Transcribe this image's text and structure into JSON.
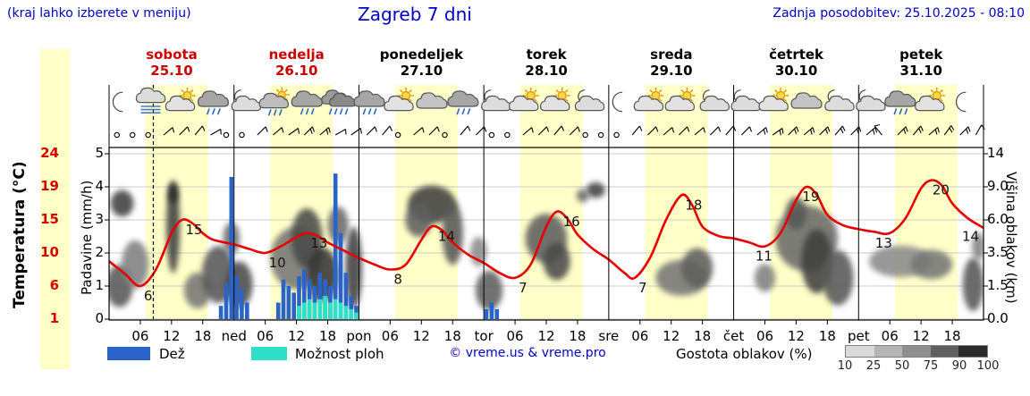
{
  "header": {
    "note_left": "(kraj lahko izberete v meniju)",
    "title": "Zagreb 7 dni",
    "last_update": "Zadnja posodobitev: 25.10.2025 - 08:10"
  },
  "colors": {
    "link_blue": "#0000cc",
    "weekend_red": "#cc0000",
    "temp_red": "#dd0000",
    "curve_red": "#e80000",
    "rain_blue": "#2a64c8",
    "shower_cyan": "#2fe0c8",
    "day_band": "#ffffc8",
    "grid_gray": "#cccccc"
  },
  "axis_left_temp": {
    "label": "Temperatura (°C)",
    "ticks": [
      24,
      19,
      15,
      10,
      6,
      1
    ]
  },
  "axis_precip": {
    "label": "Padavine (mm/h)",
    "ticks": [
      5,
      4,
      3,
      2,
      1,
      0
    ]
  },
  "axis_right": {
    "label": "Višina oblakov (km)",
    "ticks": [
      "14",
      "9.0",
      "6.0",
      "3.5",
      "1.5",
      "0.0"
    ]
  },
  "days": [
    {
      "name": "sobota",
      "date": "25.10",
      "weekend": true
    },
    {
      "name": "nedelja",
      "date": "26.10",
      "weekend": true
    },
    {
      "name": "ponedeljek",
      "date": "27.10",
      "weekend": false
    },
    {
      "name": "torek",
      "date": "28.10",
      "weekend": false
    },
    {
      "name": "sreda",
      "date": "29.10",
      "weekend": false
    },
    {
      "name": "četrtek",
      "date": "30.10",
      "weekend": false
    },
    {
      "name": "petek",
      "date": "31.10",
      "weekend": false
    }
  ],
  "x_axis": {
    "hour_labels": [
      "06",
      "12",
      "18"
    ],
    "day_abbrs": [
      "ned",
      "pon",
      "tor",
      "sre",
      "čet",
      "pet"
    ]
  },
  "legend": {
    "rain_label": "Dež",
    "shower_label": "Možnost ploh",
    "credit": "© vreme.us & vreme.pro",
    "cloud_label": "Gostota oblakov (%)",
    "cloud_scale": [
      "10",
      "25",
      "50",
      "75",
      "90",
      "100"
    ]
  },
  "chart_data": {
    "type": "meteogram",
    "hours_total": 168,
    "current_time_hour": 8.5,
    "day_band_hours": [
      7,
      19
    ],
    "temperature_unit": "°C",
    "precip_unit": "mm/h",
    "cloud_height_unit": "km",
    "temperature_series": [
      [
        0,
        9
      ],
      [
        3,
        7.5
      ],
      [
        6,
        6
      ],
      [
        9,
        8
      ],
      [
        12,
        13
      ],
      [
        14,
        15
      ],
      [
        16,
        14.5
      ],
      [
        18,
        13
      ],
      [
        20,
        12
      ],
      [
        24,
        11.3
      ],
      [
        27,
        10.6
      ],
      [
        30,
        10
      ],
      [
        33,
        11
      ],
      [
        36,
        12.4
      ],
      [
        38,
        13
      ],
      [
        40,
        12.6
      ],
      [
        42,
        11.6
      ],
      [
        45,
        10.4
      ],
      [
        48,
        9.4
      ],
      [
        51,
        8.6
      ],
      [
        54,
        8
      ],
      [
        57,
        8.6
      ],
      [
        60,
        12
      ],
      [
        62,
        14
      ],
      [
        64,
        13.4
      ],
      [
        66,
        11.6
      ],
      [
        69,
        9.8
      ],
      [
        72,
        8.8
      ],
      [
        75,
        7.6
      ],
      [
        78,
        7
      ],
      [
        81,
        8.6
      ],
      [
        84,
        14
      ],
      [
        86,
        16
      ],
      [
        88,
        15.2
      ],
      [
        90,
        12.8
      ],
      [
        93,
        10.6
      ],
      [
        96,
        9.2
      ],
      [
        99,
        7.6
      ],
      [
        101,
        7
      ],
      [
        104,
        9.5
      ],
      [
        107,
        15
      ],
      [
        110,
        18
      ],
      [
        112,
        16.8
      ],
      [
        114,
        14
      ],
      [
        117,
        12.6
      ],
      [
        120,
        12.2
      ],
      [
        123,
        11.6
      ],
      [
        126,
        11
      ],
      [
        129,
        13
      ],
      [
        132,
        17.4
      ],
      [
        134,
        19
      ],
      [
        136,
        18
      ],
      [
        138,
        15.6
      ],
      [
        141,
        14.2
      ],
      [
        144,
        13.6
      ],
      [
        147,
        13.2
      ],
      [
        150,
        13
      ],
      [
        153,
        15.2
      ],
      [
        156,
        18.8
      ],
      [
        158,
        20
      ],
      [
        160,
        19.2
      ],
      [
        162,
        17
      ],
      [
        165,
        15.2
      ],
      [
        168,
        13.8
      ]
    ],
    "temperature_labels": [
      [
        6,
        6
      ],
      [
        14,
        15
      ],
      [
        30,
        10
      ],
      [
        38,
        13
      ],
      [
        54,
        8
      ],
      [
        62.5,
        14
      ],
      [
        78,
        7
      ],
      [
        86.5,
        16
      ],
      [
        101,
        7
      ],
      [
        110,
        18
      ],
      [
        123.5,
        11
      ],
      [
        132.5,
        19
      ],
      [
        146.5,
        13
      ],
      [
        157.5,
        20
      ],
      [
        166,
        14
      ]
    ],
    "rain_bars": [
      [
        21,
        0.4
      ],
      [
        22,
        1.1
      ],
      [
        23,
        4.3
      ],
      [
        24,
        1.3
      ],
      [
        25,
        0.9
      ],
      [
        26,
        0.5
      ],
      [
        32,
        0.5
      ],
      [
        33,
        1.2
      ],
      [
        34,
        1.0
      ],
      [
        35,
        0.8
      ],
      [
        36,
        1.3
      ],
      [
        37,
        1.5
      ],
      [
        38,
        1.2
      ],
      [
        39,
        1.0
      ],
      [
        40,
        1.4
      ],
      [
        41,
        1.2
      ],
      [
        42,
        1.0
      ],
      [
        43,
        4.4
      ],
      [
        44,
        2.6
      ],
      [
        45,
        1.4
      ],
      [
        46,
        0.7
      ],
      [
        47,
        0.4
      ],
      [
        72,
        0.3
      ],
      [
        73,
        0.5
      ],
      [
        74,
        0.3
      ]
    ],
    "shower_bars": [
      [
        36,
        0.4
      ],
      [
        37,
        0.5
      ],
      [
        38,
        0.6
      ],
      [
        39,
        0.5
      ],
      [
        40,
        0.6
      ],
      [
        41,
        0.7
      ],
      [
        42,
        0.5
      ],
      [
        43,
        0.6
      ],
      [
        44,
        0.5
      ],
      [
        45,
        0.4
      ],
      [
        46,
        0.3
      ],
      [
        47,
        0.2
      ]
    ],
    "cloud_blobs": [
      [
        2.5,
        7.5,
        2.2,
        1.2,
        80
      ],
      [
        2,
        1.5,
        2.6,
        1.1,
        70
      ],
      [
        5,
        2.8,
        2.6,
        1.5,
        50
      ],
      [
        12.3,
        5.5,
        1.3,
        3.6,
        80
      ],
      [
        12.3,
        8.4,
        1,
        1,
        90
      ],
      [
        17,
        1.3,
        2.6,
        0.9,
        55
      ],
      [
        21,
        2.2,
        3.2,
        1.6,
        70
      ],
      [
        23.5,
        4.6,
        1.6,
        1.2,
        60
      ],
      [
        25,
        1.6,
        2.6,
        1.2,
        75
      ],
      [
        36,
        3.2,
        5,
        2,
        55
      ],
      [
        38,
        4.6,
        3,
        2.2,
        75
      ],
      [
        41,
        2.2,
        3,
        1.5,
        85
      ],
      [
        44,
        5.6,
        2,
        1.5,
        60
      ],
      [
        47,
        2.6,
        1.6,
        2.4,
        80
      ],
      [
        62,
        7.4,
        4.6,
        1.7,
        80
      ],
      [
        59.5,
        6,
        2.6,
        1.4,
        65
      ],
      [
        66,
        5,
        2,
        2.4,
        70
      ],
      [
        73,
        1.3,
        2.6,
        1,
        65
      ],
      [
        71,
        3.6,
        1.6,
        1,
        45
      ],
      [
        84,
        4.6,
        4,
        1.8,
        65
      ],
      [
        86,
        3,
        2.6,
        1.2,
        75
      ],
      [
        93.5,
        8.7,
        1.8,
        0.8,
        80
      ],
      [
        91,
        8.2,
        1.2,
        0.6,
        60
      ],
      [
        110,
        2,
        5,
        1,
        55
      ],
      [
        113,
        2.6,
        3,
        1.2,
        65
      ],
      [
        126,
        2,
        2,
        0.8,
        50
      ],
      [
        134,
        4.6,
        6,
        2.4,
        60
      ],
      [
        136,
        3,
        3,
        2,
        80
      ],
      [
        132,
        6.6,
        2,
        1.4,
        70
      ],
      [
        140,
        2,
        3,
        1.5,
        70
      ],
      [
        152,
        3,
        6,
        1,
        45
      ],
      [
        158,
        2.8,
        4,
        0.9,
        55
      ],
      [
        166,
        1.6,
        2,
        1.4,
        70
      ],
      [
        167,
        4,
        1.2,
        1,
        50
      ]
    ],
    "weather_icons": [
      [
        2,
        "moon"
      ],
      [
        8,
        "fog"
      ],
      [
        14,
        "sun-cloud"
      ],
      [
        20,
        "rain"
      ],
      [
        26,
        "moon-cloud"
      ],
      [
        32,
        "sun-cloud-rain"
      ],
      [
        38,
        "rain"
      ],
      [
        44,
        "heavy-rain"
      ],
      [
        50,
        "rain"
      ],
      [
        56,
        "sun-cloud"
      ],
      [
        62,
        "cloud"
      ],
      [
        68,
        "rain"
      ],
      [
        74,
        "moon-cloud"
      ],
      [
        80,
        "sun-cloud"
      ],
      [
        86,
        "sun-cloud"
      ],
      [
        92,
        "moon-cloud"
      ],
      [
        98,
        "moon"
      ],
      [
        104,
        "sun-cloud"
      ],
      [
        110,
        "sun-cloud"
      ],
      [
        116,
        "moon-cloud"
      ],
      [
        122,
        "moon-cloud"
      ],
      [
        128,
        "sun-cloud"
      ],
      [
        134,
        "cloud"
      ],
      [
        140,
        "moon-cloud"
      ],
      [
        146,
        "moon-cloud"
      ],
      [
        152,
        "rain"
      ],
      [
        158,
        "sun-cloud"
      ],
      [
        164,
        "moon"
      ]
    ],
    "wind": [
      [
        1.5,
        "c"
      ],
      [
        4.5,
        "c"
      ],
      [
        7.5,
        "c"
      ],
      [
        10.5,
        50,
        1
      ],
      [
        13.5,
        45,
        1
      ],
      [
        16.5,
        40,
        1
      ],
      [
        19.5,
        60,
        1
      ],
      [
        22.5,
        "c"
      ],
      [
        25.5,
        "c"
      ],
      [
        28.5,
        45,
        1
      ],
      [
        31.5,
        50,
        1
      ],
      [
        34.5,
        55,
        1
      ],
      [
        37.5,
        45,
        2
      ],
      [
        40.5,
        50,
        2
      ],
      [
        43.5,
        60,
        1
      ],
      [
        46.5,
        55,
        1
      ],
      [
        49.5,
        45,
        1
      ],
      [
        52.5,
        40,
        1
      ],
      [
        55.5,
        "c"
      ],
      [
        58.5,
        50,
        1
      ],
      [
        61.5,
        45,
        1
      ],
      [
        64.5,
        "c"
      ],
      [
        67.5,
        40,
        1
      ],
      [
        70.5,
        45,
        1
      ],
      [
        73.5,
        "c"
      ],
      [
        76.5,
        "c"
      ],
      [
        79.5,
        50,
        1
      ],
      [
        82.5,
        45,
        1
      ],
      [
        85.5,
        40,
        1
      ],
      [
        88.5,
        45,
        1
      ],
      [
        91.5,
        "c"
      ],
      [
        94.5,
        "c"
      ],
      [
        97.5,
        "c"
      ],
      [
        100.5,
        40,
        1
      ],
      [
        103.5,
        45,
        1
      ],
      [
        106.5,
        50,
        1
      ],
      [
        109.5,
        45,
        1
      ],
      [
        112.5,
        50,
        1
      ],
      [
        115.5,
        45,
        1
      ],
      [
        118.5,
        40,
        1
      ],
      [
        121.5,
        45,
        1
      ],
      [
        124.5,
        50,
        2
      ],
      [
        127.5,
        55,
        2
      ],
      [
        130.5,
        45,
        2
      ],
      [
        133.5,
        50,
        2
      ],
      [
        136.5,
        45,
        2
      ],
      [
        139.5,
        40,
        2
      ],
      [
        142.5,
        45,
        2
      ],
      [
        145.5,
        50,
        2
      ],
      [
        148.5,
        320,
        1
      ],
      [
        151.5,
        45,
        2
      ],
      [
        154.5,
        40,
        2
      ],
      [
        157.5,
        50,
        2
      ],
      [
        160.5,
        35,
        2
      ],
      [
        163.5,
        45,
        2
      ],
      [
        166.5,
        30,
        1
      ]
    ]
  }
}
